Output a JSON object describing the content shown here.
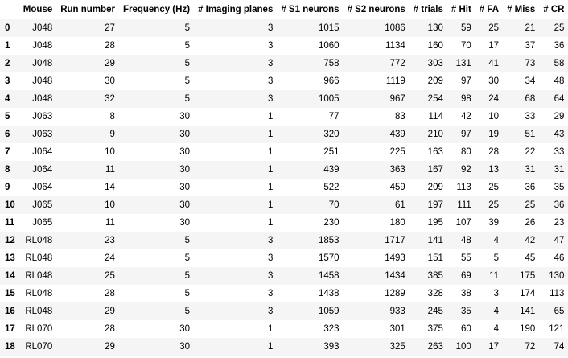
{
  "table": {
    "index_header": "",
    "columns": [
      "Mouse",
      "Run number",
      "Frequency (Hz)",
      "# Imaging planes",
      "# S1 neurons",
      "# S2 neurons",
      "# trials",
      "# Hit",
      "# FA",
      "# Miss",
      "# CR"
    ],
    "rows": [
      {
        "index": "0",
        "cells": [
          "J048",
          "27",
          "5",
          "3",
          "1015",
          "1086",
          "130",
          "59",
          "25",
          "21",
          "25"
        ]
      },
      {
        "index": "1",
        "cells": [
          "J048",
          "28",
          "5",
          "3",
          "1060",
          "1134",
          "160",
          "70",
          "17",
          "37",
          "36"
        ]
      },
      {
        "index": "2",
        "cells": [
          "J048",
          "29",
          "5",
          "3",
          "758",
          "772",
          "303",
          "131",
          "41",
          "73",
          "58"
        ]
      },
      {
        "index": "3",
        "cells": [
          "J048",
          "30",
          "5",
          "3",
          "966",
          "1119",
          "209",
          "97",
          "30",
          "34",
          "48"
        ]
      },
      {
        "index": "4",
        "cells": [
          "J048",
          "32",
          "5",
          "3",
          "1005",
          "967",
          "254",
          "98",
          "24",
          "68",
          "64"
        ]
      },
      {
        "index": "5",
        "cells": [
          "J063",
          "8",
          "30",
          "1",
          "77",
          "83",
          "114",
          "42",
          "10",
          "33",
          "29"
        ]
      },
      {
        "index": "6",
        "cells": [
          "J063",
          "9",
          "30",
          "1",
          "320",
          "439",
          "210",
          "97",
          "19",
          "51",
          "43"
        ]
      },
      {
        "index": "7",
        "cells": [
          "J064",
          "10",
          "30",
          "1",
          "251",
          "225",
          "163",
          "80",
          "28",
          "22",
          "33"
        ]
      },
      {
        "index": "8",
        "cells": [
          "J064",
          "11",
          "30",
          "1",
          "439",
          "363",
          "167",
          "92",
          "13",
          "31",
          "31"
        ]
      },
      {
        "index": "9",
        "cells": [
          "J064",
          "14",
          "30",
          "1",
          "522",
          "459",
          "209",
          "113",
          "25",
          "36",
          "35"
        ]
      },
      {
        "index": "10",
        "cells": [
          "J065",
          "10",
          "30",
          "1",
          "70",
          "61",
          "197",
          "111",
          "25",
          "25",
          "36"
        ]
      },
      {
        "index": "11",
        "cells": [
          "J065",
          "11",
          "30",
          "1",
          "230",
          "180",
          "195",
          "107",
          "39",
          "26",
          "23"
        ]
      },
      {
        "index": "12",
        "cells": [
          "RL048",
          "23",
          "5",
          "3",
          "1853",
          "1717",
          "141",
          "48",
          "4",
          "42",
          "47"
        ]
      },
      {
        "index": "13",
        "cells": [
          "RL048",
          "24",
          "5",
          "3",
          "1570",
          "1493",
          "151",
          "55",
          "5",
          "45",
          "46"
        ]
      },
      {
        "index": "14",
        "cells": [
          "RL048",
          "25",
          "5",
          "3",
          "1458",
          "1434",
          "385",
          "69",
          "11",
          "175",
          "130"
        ]
      },
      {
        "index": "15",
        "cells": [
          "RL048",
          "28",
          "5",
          "3",
          "1438",
          "1289",
          "328",
          "38",
          "3",
          "174",
          "113"
        ]
      },
      {
        "index": "16",
        "cells": [
          "RL048",
          "29",
          "5",
          "3",
          "1059",
          "933",
          "245",
          "35",
          "4",
          "141",
          "65"
        ]
      },
      {
        "index": "17",
        "cells": [
          "RL070",
          "28",
          "30",
          "1",
          "323",
          "301",
          "375",
          "60",
          "4",
          "190",
          "121"
        ]
      },
      {
        "index": "18",
        "cells": [
          "RL070",
          "29",
          "30",
          "1",
          "393",
          "325",
          "263",
          "100",
          "17",
          "72",
          "74"
        ]
      }
    ]
  }
}
